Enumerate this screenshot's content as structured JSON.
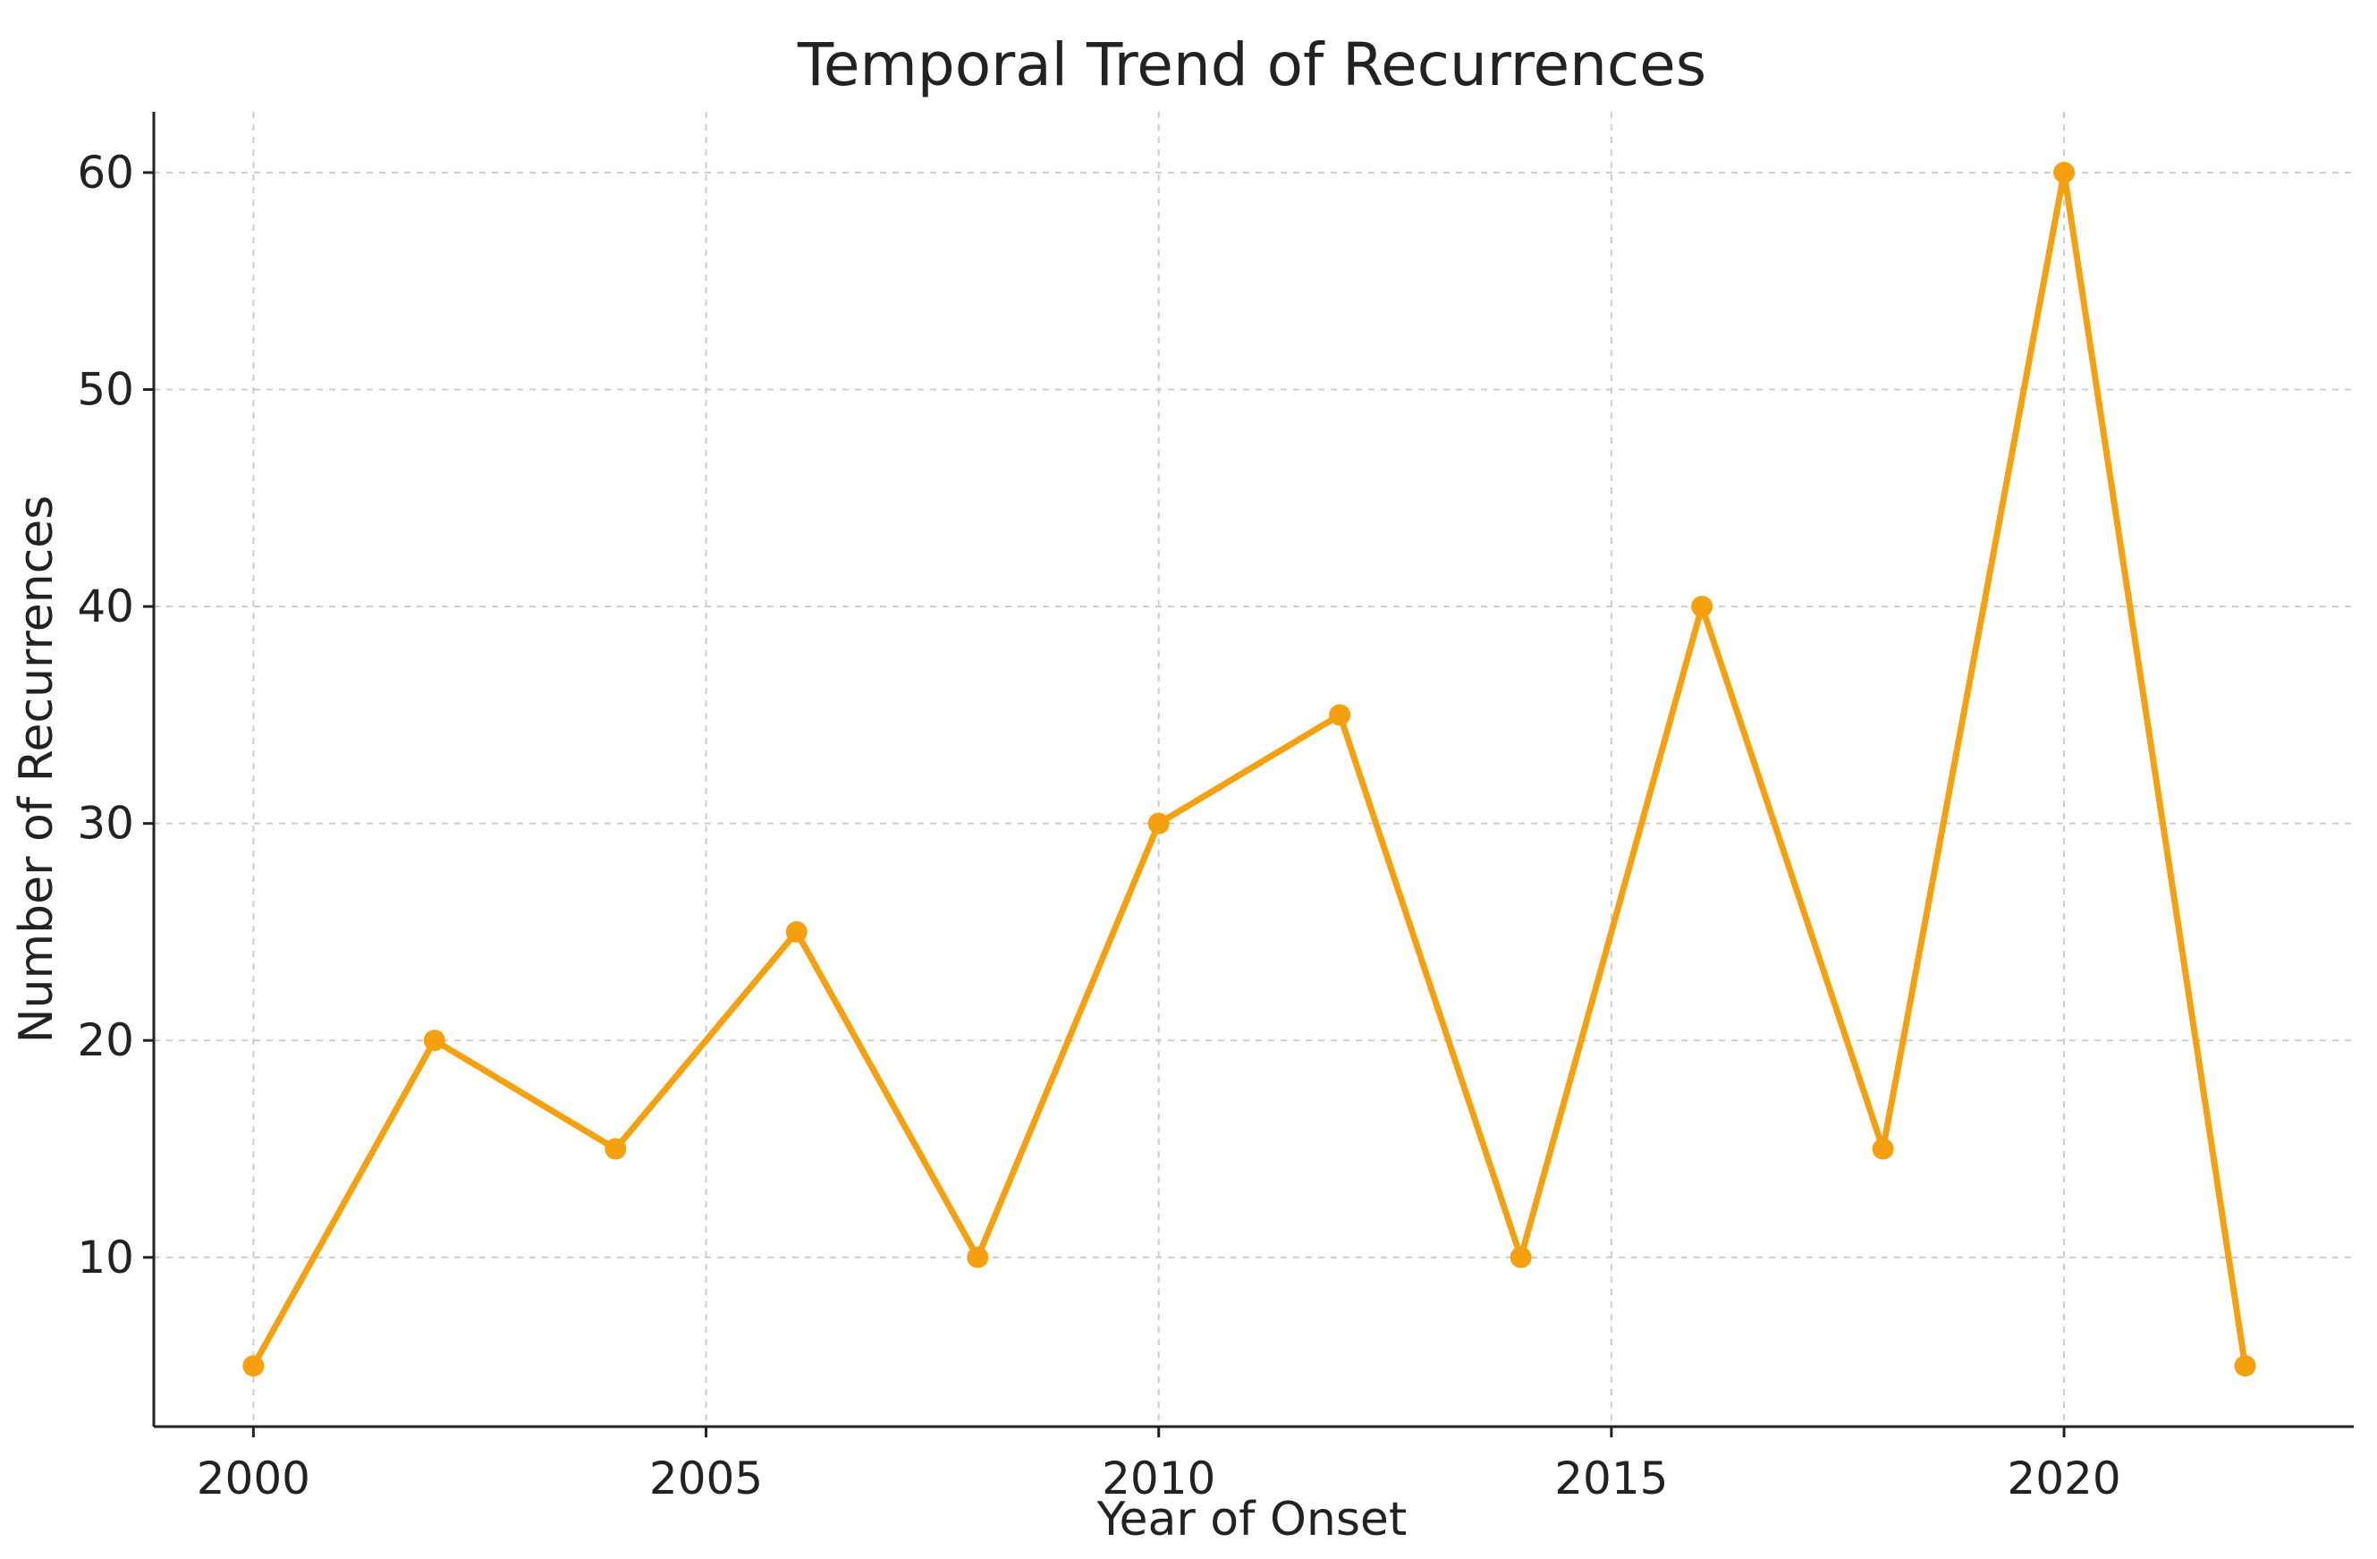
{
  "chart_data": {
    "type": "line",
    "title": "Temporal Trend of Recurrences",
    "xlabel": "Year of Onset",
    "ylabel": "Number of Recurrences",
    "x": [
      2000,
      2002,
      2004,
      2006,
      2008,
      2010,
      2012,
      2014,
      2016,
      2018,
      2020,
      2022
    ],
    "series": [
      {
        "values": [
          5,
          20,
          15,
          25,
          10,
          30,
          35,
          10,
          40,
          15,
          60,
          5
        ],
        "color": "#f5a00f",
        "marker": "circle"
      }
    ],
    "xlim": [
      1998.9,
      2023.2
    ],
    "ylim": [
      2.2,
      62.8
    ],
    "xticks": [
      2000,
      2005,
      2010,
      2015,
      2020
    ],
    "yticks": [
      10,
      20,
      30,
      40,
      50,
      60
    ],
    "grid": true,
    "grid_color": "#cccccc",
    "axis_color": "#222222"
  }
}
